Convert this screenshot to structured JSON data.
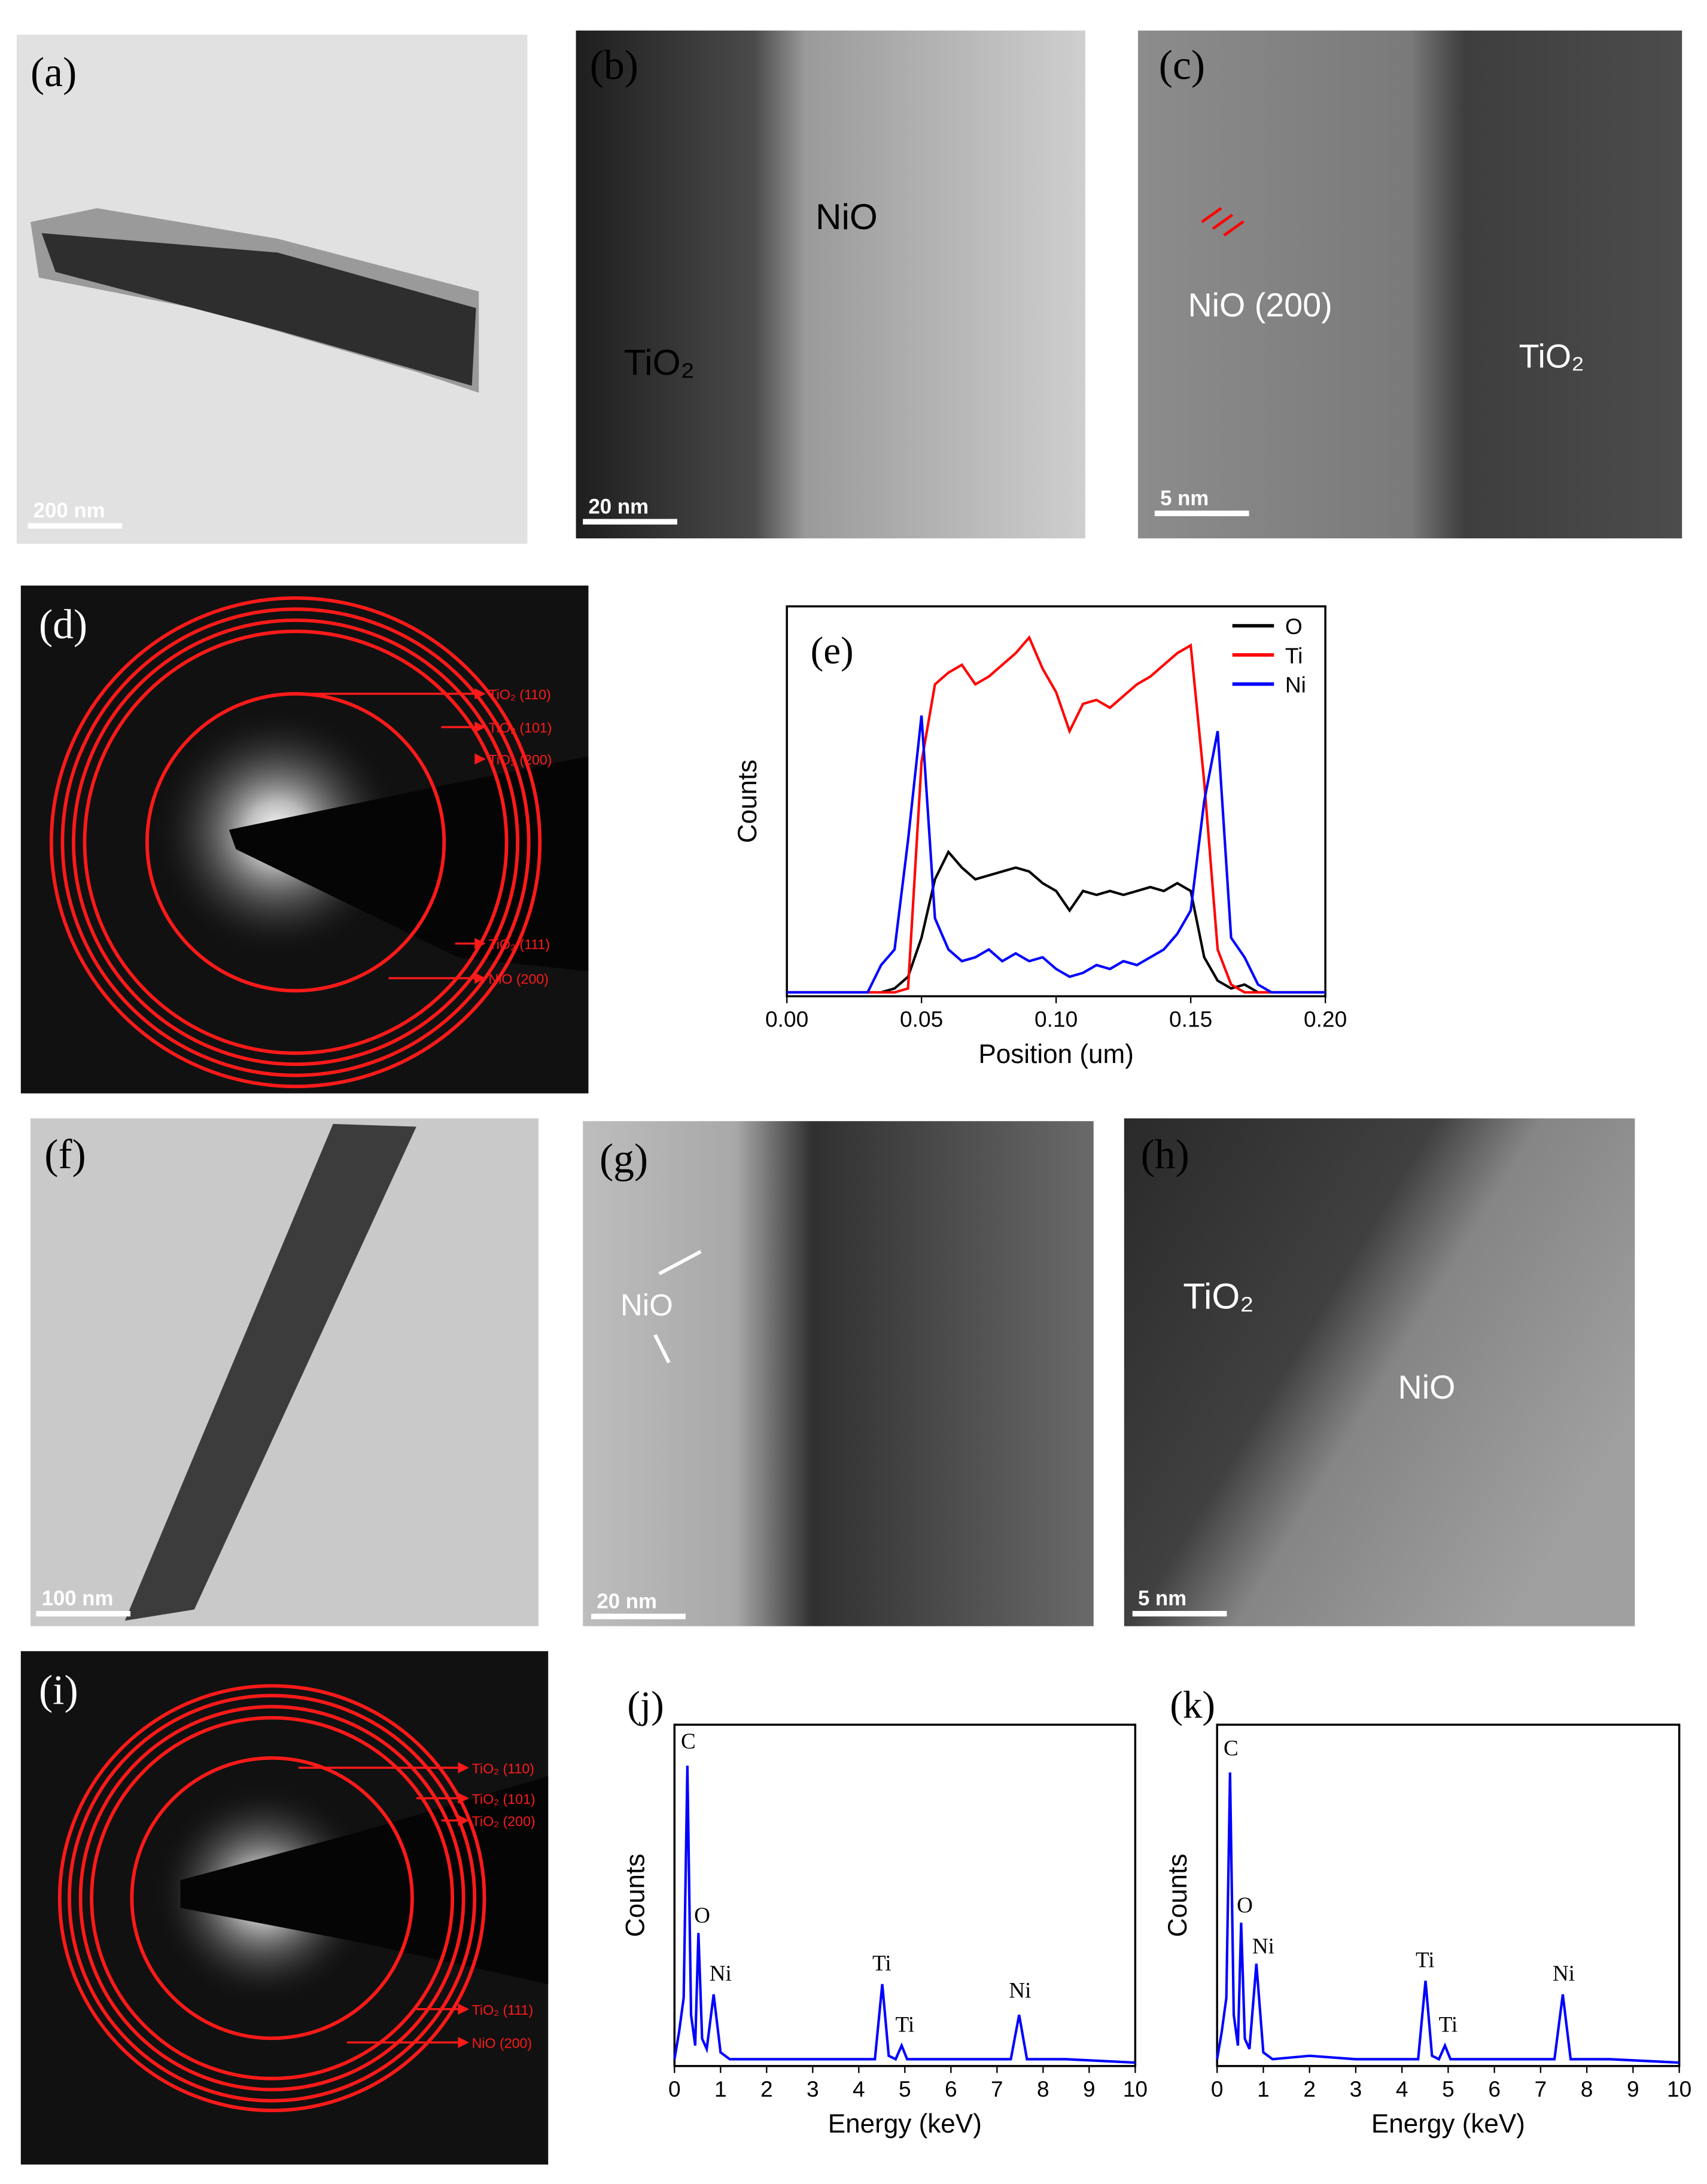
{
  "micrographs": [
    {
      "label": "(a)",
      "scale_bar": "200 nm"
    },
    {
      "label": "(b)",
      "scale_bar": "20 nm",
      "annotations": [
        "NiO",
        "TiO₂"
      ]
    },
    {
      "label": "(c)",
      "scale_bar": "5 nm",
      "annotations": [
        "NiO (200)",
        "TiO₂"
      ]
    },
    {
      "label": "(f)",
      "scale_bar": "100 nm"
    },
    {
      "label": "(g)",
      "scale_bar": "20 nm",
      "annotations": [
        "NiO"
      ]
    },
    {
      "label": "(h)",
      "scale_bar": "5 nm",
      "annotations": [
        "TiO₂",
        "NiO"
      ]
    }
  ],
  "saed": [
    {
      "label": "(d)",
      "rings": [
        "TiO₂ (110)",
        "TiO₂ (101)",
        "TiO₂ (200)",
        "TiO₂ (111)",
        "NiO (200)"
      ]
    },
    {
      "label": "(i)",
      "rings": [
        "TiO₂ (110)",
        "TiO₂ (101)",
        "TiO₂ (200)",
        "TiO₂ (111)",
        "NiO (200)"
      ]
    }
  ],
  "chart_data": [
    {
      "type": "line",
      "title": "(e)",
      "xlabel": "Position (um)",
      "ylabel": "Counts",
      "x": [
        0,
        0.005,
        0.01,
        0.015,
        0.02,
        0.025,
        0.03,
        0.035,
        0.04,
        0.045,
        0.05,
        0.055,
        0.06,
        0.065,
        0.07,
        0.075,
        0.08,
        0.085,
        0.09,
        0.095,
        0.1,
        0.105,
        0.11,
        0.115,
        0.12,
        0.125,
        0.13,
        0.135,
        0.14,
        0.145,
        0.15,
        0.155,
        0.16,
        0.165,
        0.17,
        0.175,
        0.18,
        0.185,
        0.19,
        0.195,
        0.2
      ],
      "series": [
        {
          "name": "O",
          "color": "#000000",
          "values": [
            1,
            1,
            1,
            1,
            1,
            1,
            1,
            1,
            2,
            5,
            15,
            30,
            37,
            33,
            30,
            31,
            32,
            33,
            32,
            29,
            27,
            22,
            27,
            26,
            27,
            26,
            27,
            28,
            27,
            29,
            27,
            10,
            4,
            2,
            3,
            1,
            1,
            1,
            1,
            1,
            1
          ]
        },
        {
          "name": "Ti",
          "color": "#ff0000",
          "values": [
            1,
            1,
            1,
            1,
            1,
            1,
            1,
            1,
            1,
            2,
            60,
            80,
            83,
            85,
            80,
            82,
            85,
            88,
            92,
            84,
            78,
            68,
            75,
            76,
            74,
            77,
            80,
            82,
            85,
            88,
            90,
            55,
            12,
            3,
            1,
            1,
            1,
            1,
            1,
            1,
            1
          ]
        },
        {
          "name": "Ni",
          "color": "#0000ff",
          "values": [
            1,
            1,
            1,
            1,
            1,
            1,
            1,
            8,
            12,
            40,
            72,
            20,
            12,
            9,
            10,
            12,
            9,
            11,
            9,
            10,
            7,
            5,
            6,
            8,
            7,
            9,
            8,
            10,
            12,
            16,
            22,
            50,
            68,
            15,
            10,
            3,
            1,
            1,
            1,
            1,
            1
          ]
        }
      ],
      "xlim": [
        0,
        0.2
      ],
      "xticks": [
        {
          "value": 0,
          "label": "0.00"
        },
        {
          "value": 0.05,
          "label": "0.05"
        },
        {
          "value": 0.1,
          "label": "0.10"
        },
        {
          "value": 0.15,
          "label": "0.15"
        },
        {
          "value": 0.2,
          "label": "0.20"
        }
      ],
      "ylim": [
        0,
        100
      ],
      "legend": "upper right"
    },
    {
      "type": "line",
      "title": "(j)",
      "xlabel": "Energy (keV)",
      "ylabel": "Counts",
      "x": [
        0,
        0.1,
        0.2,
        0.28,
        0.36,
        0.45,
        0.52,
        0.6,
        0.7,
        0.85,
        1.0,
        1.2,
        2,
        3,
        4.35,
        4.51,
        4.65,
        4.8,
        4.93,
        5.05,
        6,
        7.3,
        7.48,
        7.65,
        8.5,
        10
      ],
      "series": [
        {
          "color": "#0000ff",
          "values": [
            2,
            10,
            20,
            88,
            15,
            6,
            39,
            8,
            5,
            21,
            4,
            2,
            2,
            2,
            2,
            24,
            3,
            2,
            6,
            2,
            2,
            2,
            15,
            2,
            2,
            1
          ]
        }
      ],
      "xlim": [
        0,
        10
      ],
      "xticks": [
        0,
        1,
        2,
        3,
        4,
        5,
        6,
        7,
        8,
        9,
        10
      ],
      "ylim": [
        0,
        100
      ],
      "annotations": [
        {
          "text": "C",
          "x": 0.3,
          "y": 93
        },
        {
          "text": "O",
          "x": 0.6,
          "y": 42
        },
        {
          "text": "Ni",
          "x": 1.0,
          "y": 25
        },
        {
          "text": "Ti",
          "x": 4.5,
          "y": 28
        },
        {
          "text": "Ti",
          "x": 5.0,
          "y": 10
        },
        {
          "text": "Ni",
          "x": 7.5,
          "y": 20
        }
      ]
    },
    {
      "type": "line",
      "title": "(k)",
      "xlabel": "Energy (keV)",
      "ylabel": "Counts",
      "x": [
        0,
        0.1,
        0.2,
        0.28,
        0.36,
        0.45,
        0.52,
        0.6,
        0.7,
        0.85,
        1.0,
        1.2,
        2,
        3,
        4.35,
        4.51,
        4.65,
        4.8,
        4.93,
        5.05,
        6,
        7.3,
        7.48,
        7.65,
        8.5,
        10
      ],
      "series": [
        {
          "color": "#0000ff",
          "values": [
            2,
            10,
            20,
            86,
            15,
            6,
            42,
            8,
            5,
            30,
            4,
            2,
            3,
            2,
            2,
            25,
            3,
            2,
            6,
            2,
            2,
            2,
            21,
            2,
            2,
            1
          ]
        }
      ],
      "xlim": [
        0,
        10
      ],
      "xticks": [
        0,
        1,
        2,
        3,
        4,
        5,
        6,
        7,
        8,
        9,
        10
      ],
      "ylim": [
        0,
        100
      ],
      "annotations": [
        {
          "text": "C",
          "x": 0.3,
          "y": 91
        },
        {
          "text": "O",
          "x": 0.6,
          "y": 45
        },
        {
          "text": "Ni",
          "x": 1.0,
          "y": 33
        },
        {
          "text": "Ti",
          "x": 4.5,
          "y": 29
        },
        {
          "text": "Ti",
          "x": 5.0,
          "y": 10
        },
        {
          "text": "Ni",
          "x": 7.5,
          "y": 25
        }
      ]
    }
  ]
}
